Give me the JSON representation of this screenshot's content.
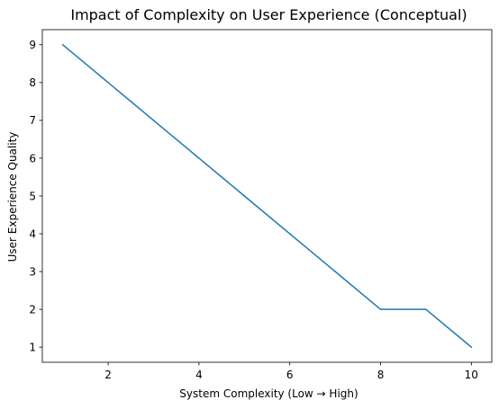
{
  "chart_data": {
    "type": "line",
    "title": "Impact of Complexity on User Experience (Conceptual)",
    "xlabel": "System Complexity (Low → High)",
    "ylabel": "User Experience Quality",
    "x": [
      1,
      2,
      3,
      4,
      5,
      6,
      7,
      8,
      9,
      10
    ],
    "series": [
      {
        "values": [
          9,
          8,
          7,
          6,
          5,
          4,
          3,
          2,
          2,
          1
        ],
        "color": "#1f77b4"
      }
    ],
    "xlim": [
      0.55,
      10.45
    ],
    "ylim": [
      0.6,
      9.4
    ],
    "xticks": [
      2,
      4,
      6,
      8,
      10
    ],
    "yticks": [
      1,
      2,
      3,
      4,
      5,
      6,
      7,
      8,
      9
    ],
    "grid": false,
    "legend": "none"
  }
}
